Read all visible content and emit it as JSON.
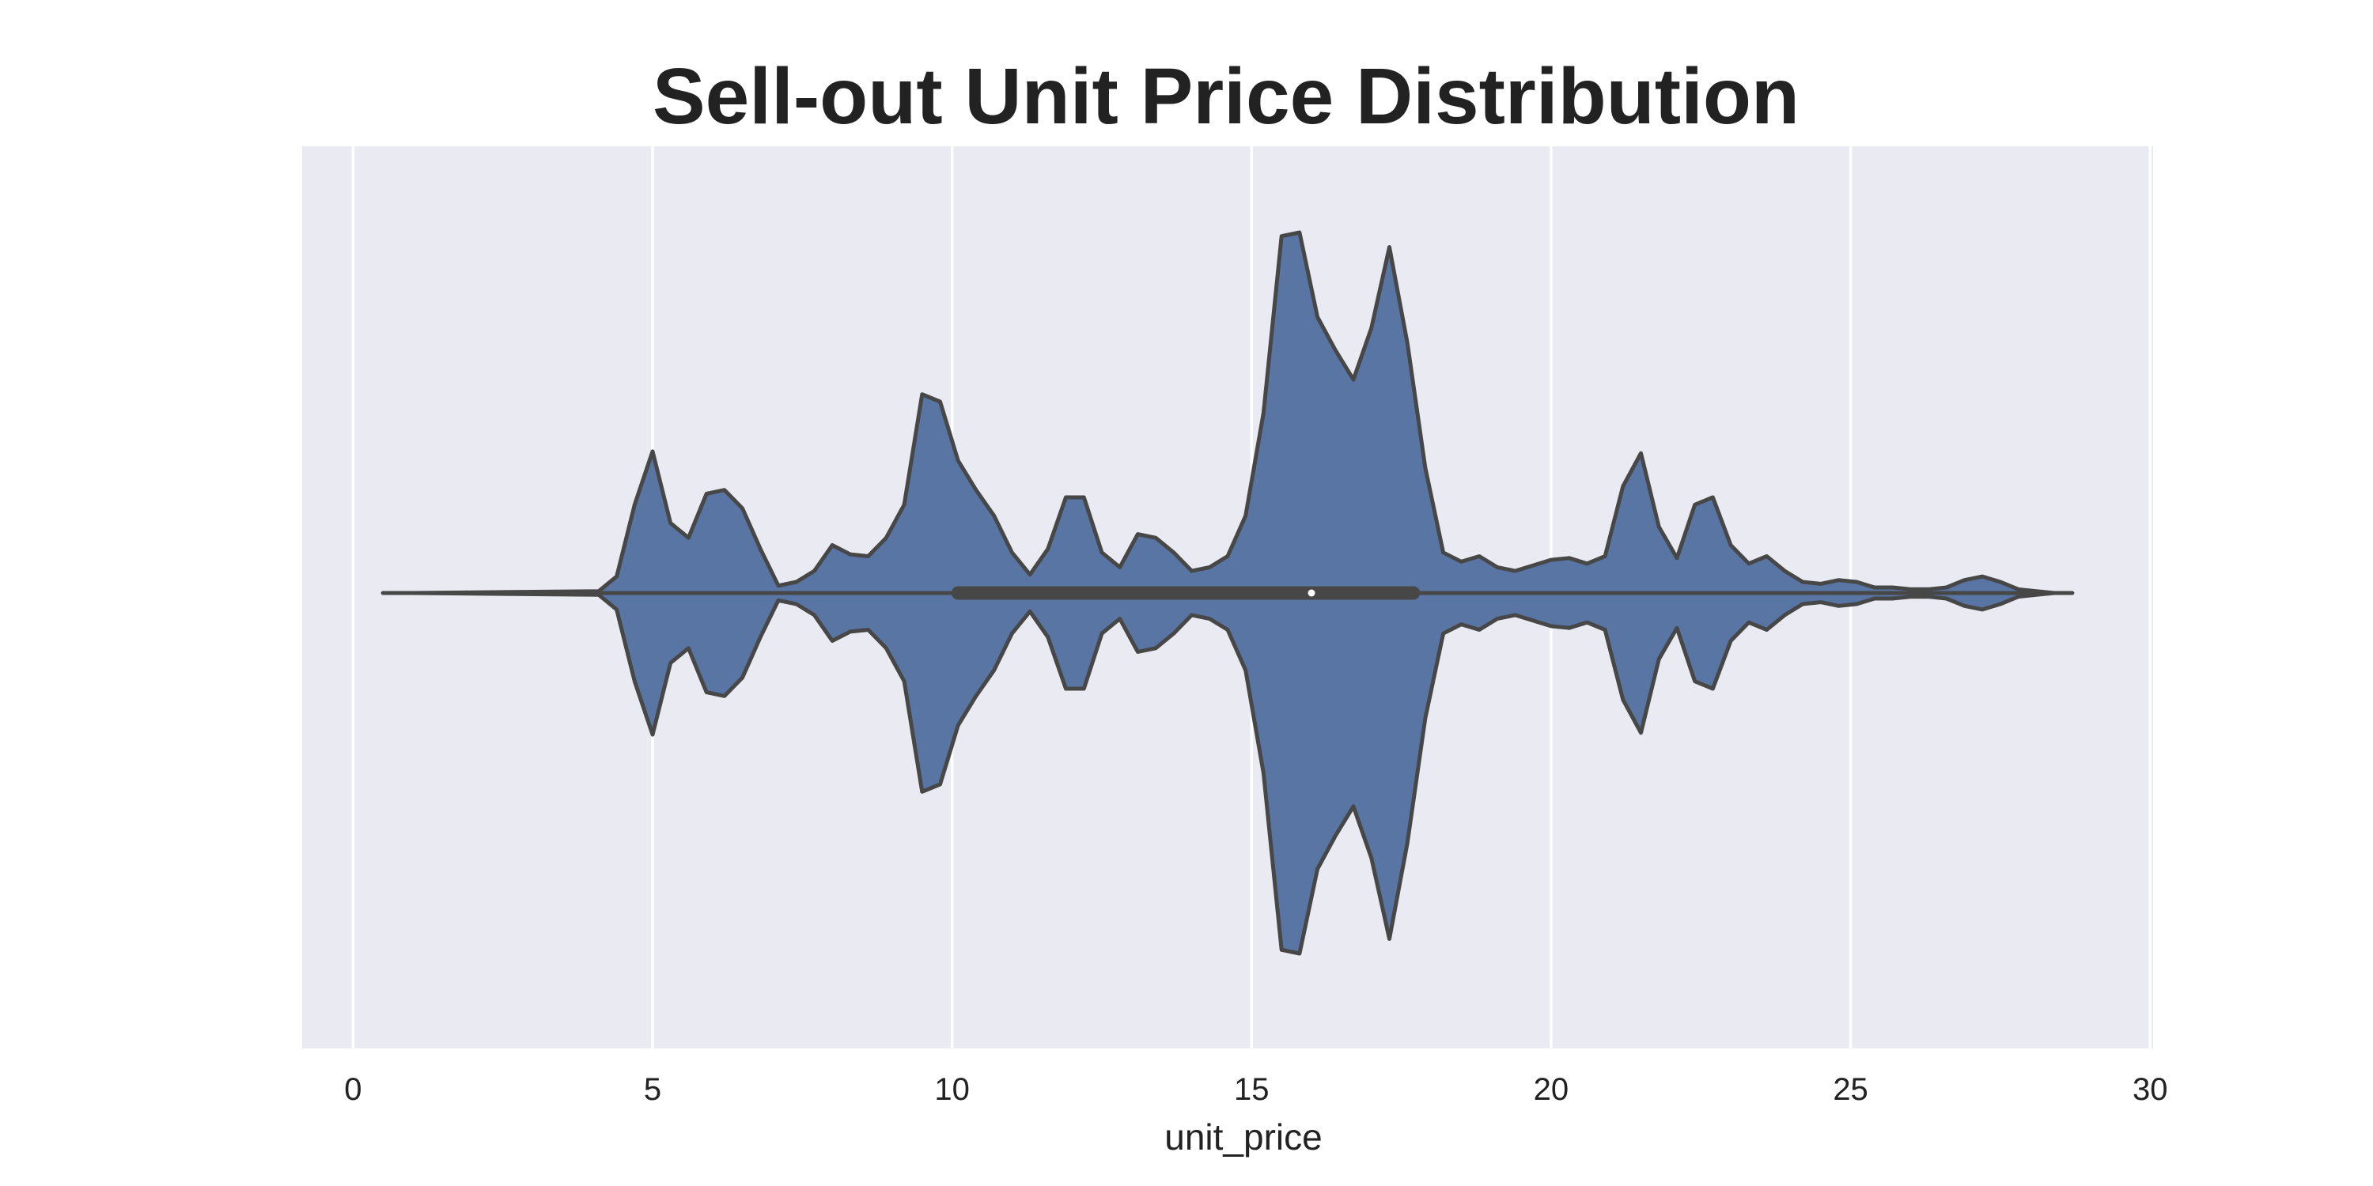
{
  "chart_data": {
    "type": "violin",
    "title": "Sell-out Unit Price Distribution",
    "xlabel": "unit_price",
    "ylabel": "",
    "xlim": [
      -0.85,
      30.05
    ],
    "xticks": [
      0,
      5,
      10,
      15,
      20,
      25,
      30
    ],
    "xtick_labels": [
      "0",
      "5",
      "10",
      "15",
      "20",
      "25",
      "30"
    ],
    "grid": true,
    "colors": {
      "background": "#eaeaf2",
      "grid": "#ffffff",
      "fill": "#5975a4",
      "edge": "#474747",
      "median": "#ffffff"
    },
    "box": {
      "whisker_low": 0.5,
      "q1": 10.1,
      "median": 16.0,
      "q3": 17.7,
      "whisker_high": 28.7
    },
    "density": {
      "x": [
        0.5,
        1.0,
        4.1,
        4.4,
        4.7,
        5.0,
        5.3,
        5.6,
        5.9,
        6.2,
        6.5,
        6.8,
        7.1,
        7.4,
        7.7,
        8.0,
        8.3,
        8.6,
        8.9,
        9.2,
        9.5,
        9.8,
        10.1,
        10.4,
        10.7,
        11.0,
        11.3,
        11.6,
        11.9,
        12.2,
        12.5,
        12.8,
        13.1,
        13.4,
        13.7,
        14.0,
        14.3,
        14.6,
        14.9,
        15.2,
        15.5,
        15.8,
        16.1,
        16.4,
        16.7,
        17.0,
        17.3,
        17.6,
        17.9,
        18.2,
        18.5,
        18.8,
        19.1,
        19.4,
        19.7,
        20.0,
        20.3,
        20.6,
        20.9,
        21.2,
        21.5,
        21.8,
        22.1,
        22.4,
        22.7,
        23.0,
        23.3,
        23.6,
        23.9,
        24.2,
        24.5,
        24.8,
        25.1,
        25.4,
        25.7,
        26.0,
        26.3,
        26.6,
        26.9,
        27.2,
        27.5,
        27.8,
        28.1,
        28.4,
        28.7
      ],
      "width": [
        0.0,
        0.0,
        0.005,
        0.045,
        0.24,
        0.385,
        0.19,
        0.15,
        0.27,
        0.28,
        0.23,
        0.12,
        0.02,
        0.03,
        0.06,
        0.13,
        0.105,
        0.1,
        0.15,
        0.24,
        0.54,
        0.52,
        0.36,
        0.28,
        0.21,
        0.11,
        0.05,
        0.12,
        0.26,
        0.26,
        0.11,
        0.07,
        0.16,
        0.15,
        0.11,
        0.06,
        0.07,
        0.1,
        0.21,
        0.49,
        0.97,
        0.98,
        0.75,
        0.66,
        0.58,
        0.72,
        0.94,
        0.68,
        0.34,
        0.11,
        0.085,
        0.1,
        0.07,
        0.06,
        0.075,
        0.09,
        0.095,
        0.08,
        0.1,
        0.29,
        0.38,
        0.18,
        0.095,
        0.24,
        0.26,
        0.13,
        0.08,
        0.1,
        0.06,
        0.03,
        0.025,
        0.035,
        0.03,
        0.015,
        0.015,
        0.01,
        0.01,
        0.015,
        0.035,
        0.045,
        0.03,
        0.01,
        0.005,
        0.0,
        0.0
      ]
    }
  }
}
